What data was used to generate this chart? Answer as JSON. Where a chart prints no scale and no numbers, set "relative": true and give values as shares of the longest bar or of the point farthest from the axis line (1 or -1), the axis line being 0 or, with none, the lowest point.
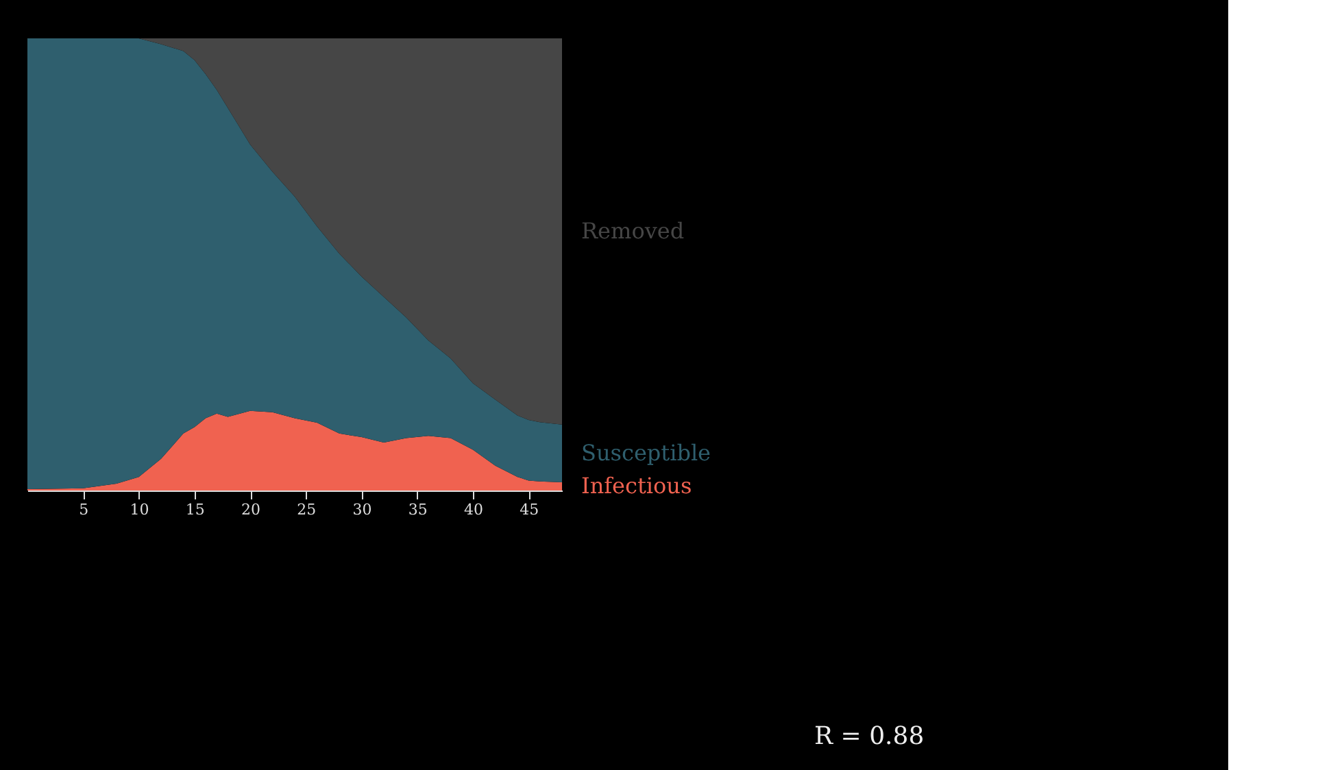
{
  "chart_data": [
    {
      "type": "area",
      "stacked": true,
      "relative": true,
      "legend": false,
      "grid": false,
      "x": [
        0,
        5,
        8,
        10,
        12,
        14,
        15,
        16,
        17,
        18,
        20,
        22,
        24,
        26,
        28,
        30,
        32,
        34,
        36,
        38,
        40,
        42,
        44,
        45,
        46,
        48
      ],
      "xlim": [
        0,
        48
      ],
      "xticks": [
        5,
        10,
        15,
        20,
        25,
        30,
        35,
        40,
        45
      ],
      "series": [
        {
          "name": "Infectious",
          "color": "#f06250",
          "values": [
            0.003,
            0.005,
            0.015,
            0.03,
            0.07,
            0.126,
            0.14,
            0.16,
            0.17,
            0.163,
            0.176,
            0.173,
            0.16,
            0.15,
            0.126,
            0.118,
            0.106,
            0.116,
            0.121,
            0.116,
            0.09,
            0.055,
            0.03,
            0.022,
            0.02,
            0.018
          ]
        },
        {
          "name": "Susceptible",
          "color": "#2f5f6e",
          "values": [
            0.997,
            0.995,
            0.985,
            0.97,
            0.917,
            0.846,
            0.812,
            0.761,
            0.716,
            0.683,
            0.589,
            0.532,
            0.49,
            0.434,
            0.398,
            0.355,
            0.322,
            0.267,
            0.211,
            0.176,
            0.147,
            0.146,
            0.136,
            0.134,
            0.131,
            0.128
          ]
        },
        {
          "name": "Removed",
          "color": "#464646",
          "values": [
            0,
            0,
            0,
            0,
            0.013,
            0.028,
            0.048,
            0.079,
            0.114,
            0.154,
            0.235,
            0.295,
            0.35,
            0.416,
            0.476,
            0.527,
            0.572,
            0.617,
            0.668,
            0.708,
            0.763,
            0.799,
            0.834,
            0.844,
            0.849,
            0.854
          ]
        }
      ]
    },
    {
      "type": "other",
      "annotations": [
        "R = 0.88"
      ]
    }
  ]
}
